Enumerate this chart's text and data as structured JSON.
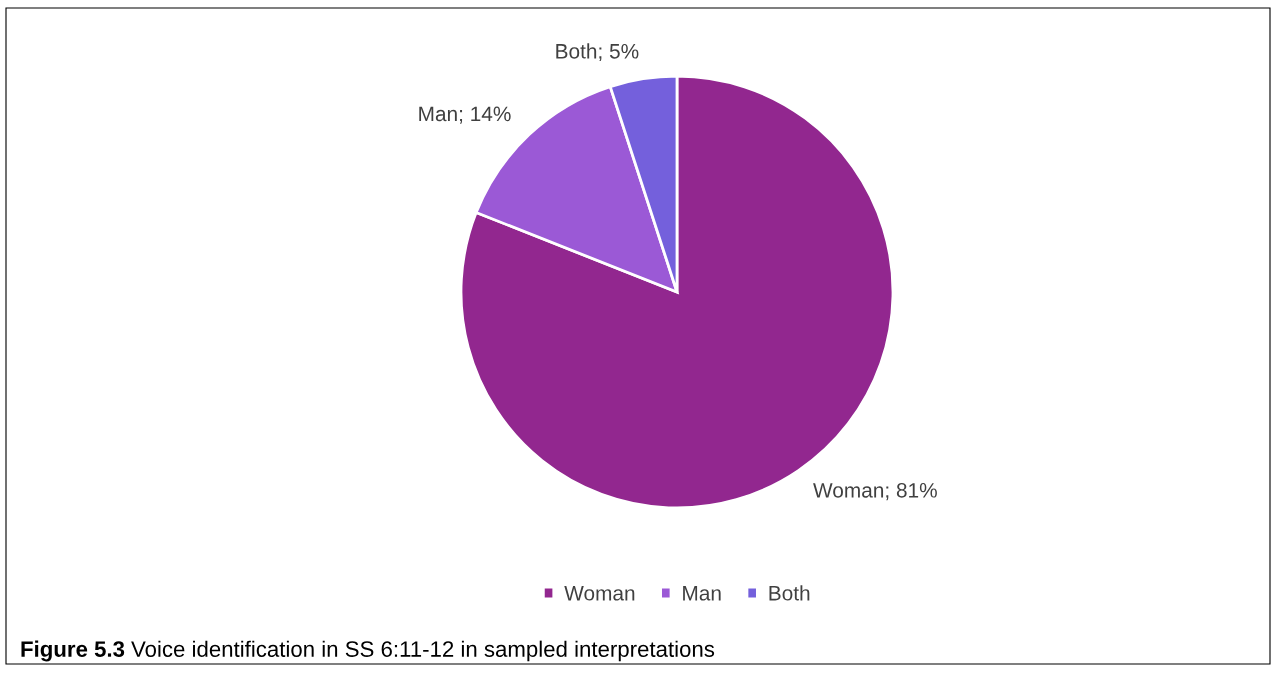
{
  "chart_data": {
    "type": "pie",
    "categories": [
      "Woman",
      "Man",
      "Both"
    ],
    "values": [
      81,
      14,
      5
    ],
    "colors": [
      "#92278f",
      "#9b59d6",
      "#7460dc"
    ],
    "value_labels": [
      "Woman; 81%",
      "Man; 14%",
      "Both; 5%"
    ],
    "legend": "bottom",
    "annotations": [
      "Figure 5.3 Voice identification in SS 6:11-12 in sampled interpretations"
    ]
  }
}
